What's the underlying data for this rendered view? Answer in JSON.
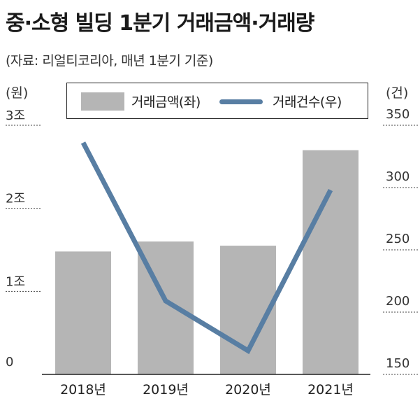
{
  "header": {
    "title": "중·소형 빌딩 1분기 거래금액·거래량",
    "subtitle": "(자료: 리얼티코리아, 매년 1분기 기준)"
  },
  "axes": {
    "left_unit": "(원)",
    "right_unit": "(건)"
  },
  "legend": {
    "bar_label": "거래금액(좌)",
    "line_label": "거래건수(우)"
  },
  "colors": {
    "bar": "#b5b5b5",
    "line": "#587ea3",
    "grid": "#444444"
  },
  "chart_data": {
    "type": "bar",
    "categories": [
      "2018년",
      "2019년",
      "2020년",
      "2021년"
    ],
    "series": [
      {
        "name": "거래금액(좌)",
        "type": "bar",
        "axis": "left",
        "values": [
          1.48,
          1.6,
          1.55,
          2.7
        ]
      },
      {
        "name": "거래건수(우)",
        "type": "line",
        "axis": "right",
        "values": [
          336,
          209,
          169,
          298
        ]
      }
    ],
    "y_left": {
      "min": 0,
      "max": 3,
      "ticks": [
        0,
        1,
        2,
        3
      ],
      "tick_labels": [
        "0",
        "1조",
        "2조",
        "3조"
      ]
    },
    "y_right": {
      "min": 150,
      "max": 350,
      "ticks": [
        150,
        200,
        250,
        300,
        350
      ],
      "tick_labels": [
        "150",
        "200",
        "250",
        "300",
        "350"
      ]
    },
    "grid": true,
    "legend_position": "top"
  }
}
